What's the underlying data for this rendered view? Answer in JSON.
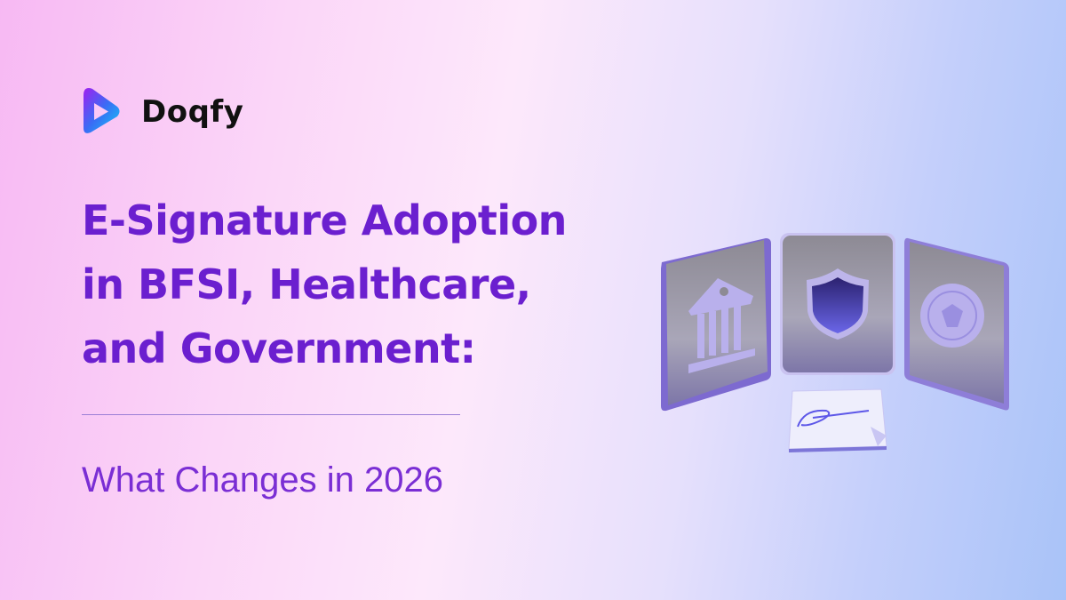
{
  "brand": {
    "name": "Doqfy",
    "logo_icon": "play-triangle-logo"
  },
  "title": {
    "lines": [
      "E-Signature Adoption",
      "in BFSI, Healthcare,",
      "and Government:"
    ]
  },
  "subtitle": "What Changes in 2026",
  "illustration": {
    "icons": [
      "bank-icon",
      "shield-icon",
      "seal-icon",
      "signature-document-icon"
    ]
  },
  "colors": {
    "title": "#6b1fcf",
    "subtitle": "#7a2ed4",
    "logo_text": "#111111"
  }
}
